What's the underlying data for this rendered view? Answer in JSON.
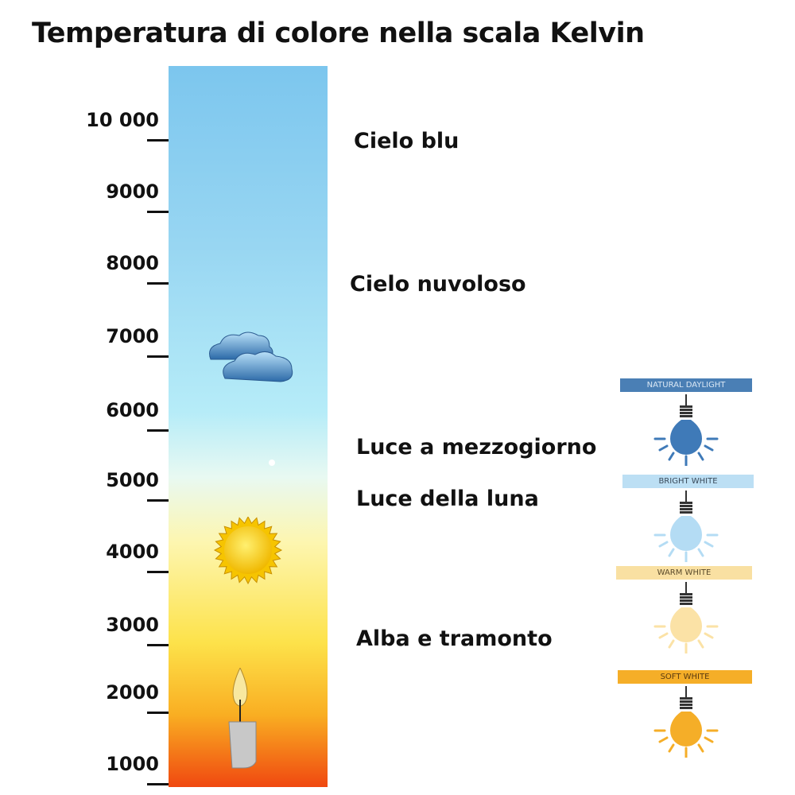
{
  "title": "Temperatura di colore nella scala Kelvin",
  "scale": {
    "ticks": [
      "10 000",
      "9000",
      "8000",
      "7000",
      "6000",
      "5000",
      "4000",
      "3000",
      "2000",
      "1000"
    ]
  },
  "categories": [
    {
      "label": "Cielo blu"
    },
    {
      "label": "Cielo nuvoloso"
    },
    {
      "label": "Luce a mezzogiorno"
    },
    {
      "label": "Luce della luna"
    },
    {
      "label": "Alba e tramonto"
    }
  ],
  "icons": [
    "cloud-icon",
    "sun-icon",
    "candle-icon"
  ],
  "bulbs": [
    {
      "label": "NATURAL DAYLIGHT",
      "color": "#4a7fb5",
      "bulb_color": "#3f7ab8",
      "text_color": "#dbe8f5"
    },
    {
      "label": "BRIGHT WHITE",
      "color": "#bcdff4",
      "bulb_color": "#b4dcf4",
      "text_color": "#3a4a5a"
    },
    {
      "label": "WARM WHITE",
      "color": "#f9e0a2",
      "bulb_color": "#fbe2a6",
      "text_color": "#5a4a2a"
    },
    {
      "label": "SOFT WHITE",
      "color": "#f5ae28",
      "bulb_color": "#f5ae28",
      "text_color": "#5a3a10"
    }
  ]
}
